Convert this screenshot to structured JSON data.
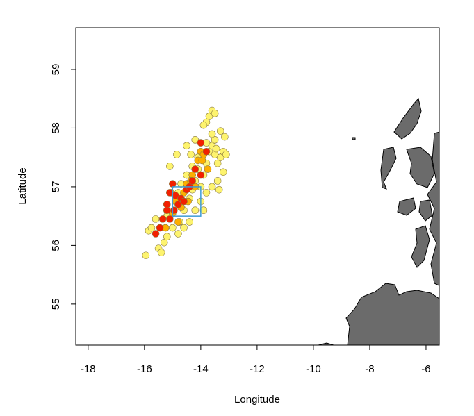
{
  "chart_data": {
    "type": "scatter",
    "x_label": "Longitude",
    "y_label": "Latitude",
    "xlim": [
      -18.44,
      -5.53
    ],
    "ylim": [
      54.3,
      59.71
    ],
    "xticks": [
      -18,
      -16,
      -14,
      -12,
      -10,
      -8,
      -6
    ],
    "yticks": [
      55,
      56,
      57,
      58,
      59
    ],
    "box": {
      "x": [
        -15,
        -14
      ],
      "y": [
        56.5,
        57
      ],
      "color": "#3d9bd6"
    },
    "land_color": "#6b6b6b",
    "series": [
      {
        "color": "#fdf36e",
        "x": [
          -15.95,
          -15.85,
          -15.75,
          -15.6,
          -15.5,
          -15.4,
          -15.3,
          -15.2,
          -14.8,
          -14.75,
          -14.6,
          -14.4,
          -14.3,
          -14.2,
          -14.1,
          -14.0,
          -13.9,
          -13.8,
          -13.7,
          -13.6,
          -13.5,
          -13.4,
          -13.3,
          -13.2,
          -13.1,
          -13.15,
          -13.3,
          -13.5,
          -13.6,
          -13.8,
          -14.1,
          -14.3,
          -14.5,
          -14.7,
          -14.8,
          -13.7,
          -13.6,
          -13.5,
          -13.8,
          -13.9,
          -14.2,
          -14.35,
          -14.5,
          -14.85,
          -15.1,
          -13.4,
          -13.6,
          -13.8,
          -14.0,
          -14.2,
          -14.4,
          -14.6,
          -13.2,
          -13.35,
          -13.9,
          -15.0,
          -15.2,
          -13.45
        ],
        "values": [
          55.83,
          56.25,
          56.3,
          56.45,
          55.95,
          55.88,
          56.05,
          56.15,
          56.2,
          56.4,
          56.6,
          56.8,
          56.95,
          57.1,
          57.3,
          57.0,
          57.2,
          57.4,
          57.6,
          57.7,
          57.55,
          57.4,
          57.5,
          57.6,
          57.55,
          57.85,
          57.95,
          57.8,
          57.9,
          57.75,
          57.5,
          57.35,
          57.2,
          57.05,
          56.9,
          58.2,
          58.3,
          58.25,
          58.1,
          58.05,
          57.8,
          57.55,
          57.7,
          57.55,
          57.35,
          57.1,
          57.0,
          56.9,
          56.75,
          56.6,
          56.4,
          56.3,
          57.25,
          56.95,
          56.6,
          56.3,
          56.5,
          57.65
        ]
      },
      {
        "color": "#fdae00",
        "x": [
          -14.9,
          -14.6,
          -14.5,
          -14.3,
          -14.1,
          -14.0,
          -13.95,
          -14.2,
          -14.35,
          -14.8,
          -15.0,
          -14.7,
          -13.75,
          -13.9,
          -14.45,
          -15.25,
          -15.05
        ],
        "values": [
          56.75,
          56.9,
          57.05,
          57.2,
          57.45,
          57.6,
          57.45,
          57.0,
          57.1,
          56.4,
          56.55,
          56.65,
          57.3,
          57.55,
          56.75,
          56.3,
          56.9
        ]
      },
      {
        "color": "#f22000",
        "x": [
          -15.0,
          -15.1,
          -15.2,
          -15.35,
          -15.45,
          -15.6,
          -14.9,
          -14.8,
          -14.7,
          -14.6,
          -14.5,
          -14.4,
          -14.3,
          -14.2,
          -14.0,
          -13.8,
          -14.0,
          -15.2,
          -14.95,
          -15.1
        ],
        "values": [
          57.05,
          56.9,
          56.6,
          56.45,
          56.3,
          56.2,
          56.85,
          56.7,
          56.8,
          56.75,
          56.95,
          57.0,
          57.1,
          57.3,
          57.2,
          57.6,
          57.75,
          56.7,
          56.6,
          56.45
        ]
      }
    ]
  }
}
